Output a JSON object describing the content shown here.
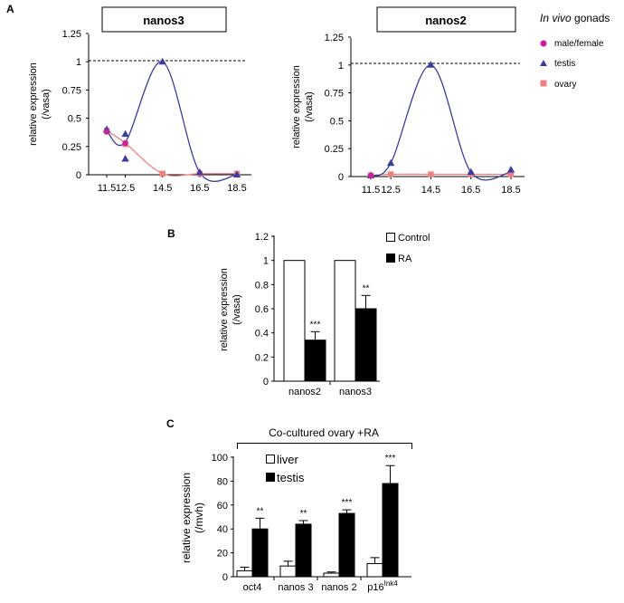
{
  "panel_labels": {
    "a": "A",
    "b": "B",
    "c": "C"
  },
  "legend_a": {
    "title_italic": "In vivo",
    "title_rest": " gonads",
    "items": [
      {
        "label": "male/female",
        "color": "#cc1f9b",
        "marker": "circle"
      },
      {
        "label": "testis",
        "color": "#3c3ca0",
        "marker": "triangle"
      },
      {
        "label": "ovary",
        "color": "#f08080",
        "marker": "square"
      }
    ]
  },
  "chart_data": [
    {
      "type": "line",
      "title": "nanos3",
      "ylabel_line1": "relative expression",
      "ylabel_line2": "(/vasa)",
      "categories": [
        "11.5",
        "12.5",
        "14.5",
        "16.5",
        "18.5"
      ],
      "yticks": [
        "0",
        "0.25",
        "0.5",
        "0.75",
        "1",
        "1.25"
      ],
      "ylim": [
        0,
        1.25
      ],
      "reference_line": 1,
      "series": [
        {
          "name": "testis",
          "color": "#3c3ca0",
          "marker": "triangle",
          "curve": [
            [
              11.5,
              0.39
            ],
            [
              12.5,
              0.29
            ],
            [
              14.5,
              1.0
            ],
            [
              16.5,
              0.02
            ],
            [
              18.5,
              0.0
            ]
          ],
          "points": [
            [
              11.5,
              0.4
            ],
            [
              12.5,
              0.36
            ],
            [
              12.5,
              0.14
            ],
            [
              14.5,
              1.0
            ],
            [
              16.5,
              0.02
            ],
            [
              18.5,
              0.0
            ]
          ]
        },
        {
          "name": "ovary",
          "color": "#f08080",
          "marker": "square",
          "curve": [
            [
              11.5,
              0.39
            ],
            [
              12.5,
              0.28
            ],
            [
              14.5,
              0.01
            ],
            [
              16.5,
              0.01
            ],
            [
              18.5,
              0.01
            ]
          ],
          "points": [
            [
              11.5,
              0.39
            ],
            [
              12.5,
              0.27
            ],
            [
              14.5,
              0.01
            ],
            [
              16.5,
              0.01
            ],
            [
              18.5,
              0.01
            ]
          ]
        },
        {
          "name": "male/female",
          "color": "#cc1f9b",
          "marker": "circle",
          "curve": [],
          "points": [
            [
              11.5,
              0.38
            ],
            [
              12.5,
              0.28
            ]
          ]
        }
      ]
    },
    {
      "type": "line",
      "title": "nanos2",
      "ylabel_line1": "relative expression",
      "ylabel_line2": "(/vasa)",
      "categories": [
        "11.5",
        "12.5",
        "14.5",
        "16.5",
        "18.5"
      ],
      "yticks": [
        "0",
        "0.25",
        "0.5",
        "0.75",
        "1",
        "1.25"
      ],
      "ylim": [
        0,
        1.25
      ],
      "reference_line": 1,
      "series": [
        {
          "name": "testis",
          "color": "#3c3ca0",
          "marker": "triangle",
          "curve": [
            [
              11.5,
              0.01
            ],
            [
              12.5,
              0.12
            ],
            [
              14.5,
              1.0
            ],
            [
              16.5,
              0.04
            ],
            [
              18.5,
              0.04
            ]
          ],
          "points": [
            [
              11.5,
              0.01
            ],
            [
              12.5,
              0.12
            ],
            [
              14.5,
              1.0
            ],
            [
              16.5,
              0.04
            ],
            [
              18.5,
              0.06
            ]
          ]
        },
        {
          "name": "ovary",
          "color": "#f08080",
          "marker": "square",
          "curve": [
            [
              11.5,
              0.01
            ],
            [
              12.5,
              0.02
            ],
            [
              14.5,
              0.02
            ],
            [
              16.5,
              0.02
            ],
            [
              18.5,
              0.02
            ]
          ],
          "points": [
            [
              11.5,
              0.01
            ],
            [
              12.5,
              0.02
            ],
            [
              14.5,
              0.02
            ],
            [
              16.5,
              0.02
            ],
            [
              18.5,
              0.02
            ]
          ]
        },
        {
          "name": "male/female",
          "color": "#cc1f9b",
          "marker": "circle",
          "curve": [],
          "points": [
            [
              11.5,
              0.01
            ]
          ]
        }
      ]
    },
    {
      "type": "bar",
      "categories": [
        "nanos2",
        "nanos3"
      ],
      "ylabel_line1": "relative expression",
      "ylabel_line2": "(/vasa)",
      "yticks": [
        "0",
        "0.2",
        "0.4",
        "0.6",
        "0.8",
        "1",
        "1.2"
      ],
      "ylim": [
        0,
        1.2
      ],
      "series": [
        {
          "name": "Control",
          "fill": "#ffffff",
          "values": [
            1.0,
            1.0
          ],
          "errors": [
            0,
            0
          ]
        },
        {
          "name": "RA",
          "fill": "#000000",
          "values": [
            0.34,
            0.6
          ],
          "errors": [
            0.07,
            0.11
          ]
        }
      ],
      "annotations": [
        "***",
        "**"
      ]
    },
    {
      "type": "bar",
      "title": "Co-cultured ovary +RA",
      "categories": [
        "oct4",
        "nanos 3",
        "nanos 2",
        "p16"
      ],
      "category_superscripts": [
        "",
        "",
        "",
        "Ink4"
      ],
      "ylabel_line1": "relative expression",
      "ylabel_line2": "(/mvh)",
      "yticks": [
        "0",
        "20",
        "40",
        "60",
        "80",
        "100"
      ],
      "ylim": [
        0,
        100
      ],
      "series": [
        {
          "name": "liver",
          "fill": "#ffffff",
          "values": [
            5,
            9,
            3,
            11
          ],
          "errors": [
            3,
            4,
            1,
            5
          ]
        },
        {
          "name": "testis",
          "fill": "#000000",
          "values": [
            40,
            44,
            53,
            78
          ],
          "errors": [
            9,
            3,
            3,
            15
          ]
        }
      ],
      "annotations": [
        "**",
        "**",
        "***",
        "***"
      ]
    }
  ]
}
